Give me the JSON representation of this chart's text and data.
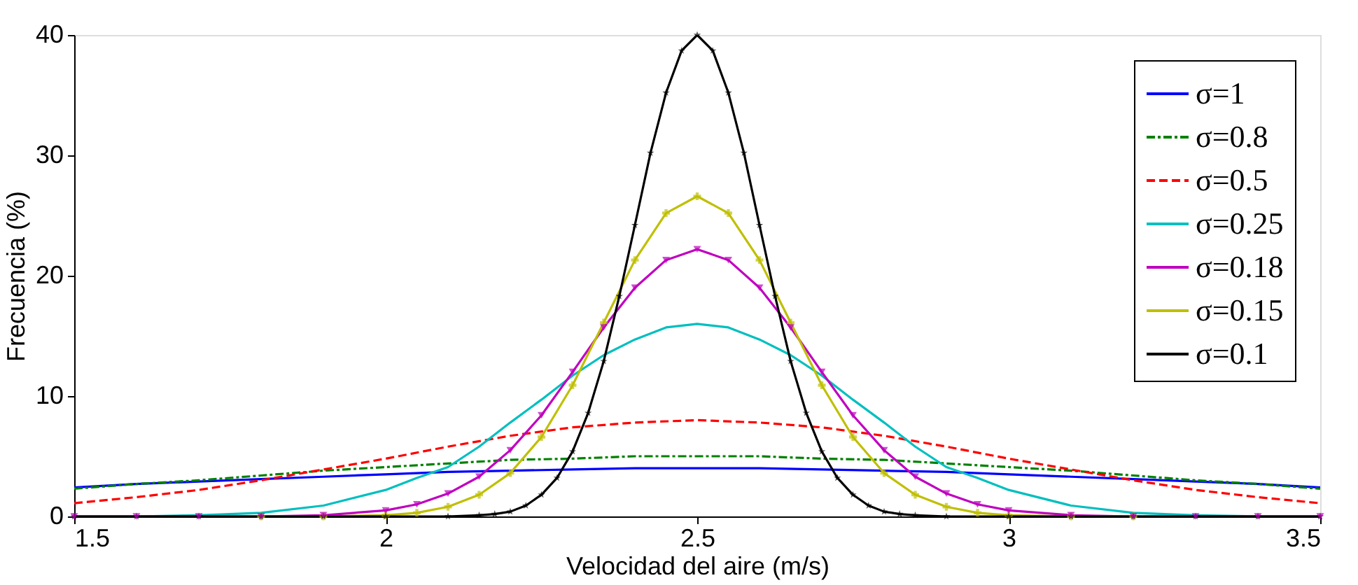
{
  "chart_data": {
    "type": "line",
    "xlabel": "Velocidad del aire  (m/s)",
    "ylabel": "Frecuencia (%)",
    "xlim": [
      1.5,
      3.5
    ],
    "xticks": [
      1.5,
      2,
      2.5,
      3,
      3.5
    ],
    "ylim": [
      0,
      40
    ],
    "yticks": [
      0,
      10,
      20,
      30,
      40
    ],
    "grid": false,
    "legend": "top right",
    "series": [
      {
        "name": "σ=1",
        "color": "#0000ff",
        "line_style": "solid",
        "marker": "none",
        "x": [
          1.5,
          1.6,
          1.7,
          1.8,
          1.9,
          2.0,
          2.1,
          2.2,
          2.3,
          2.4,
          2.5,
          2.6,
          2.7,
          2.8,
          2.9,
          3.0,
          3.1,
          3.2,
          3.3,
          3.4,
          3.5
        ],
        "values": [
          2.4,
          2.7,
          2.9,
          3.1,
          3.3,
          3.5,
          3.7,
          3.8,
          3.9,
          4.0,
          4.0,
          4.0,
          3.9,
          3.8,
          3.7,
          3.5,
          3.3,
          3.1,
          2.9,
          2.7,
          2.4
        ]
      },
      {
        "name": "σ=0.8",
        "color": "#008000",
        "line_style": "dashdot",
        "marker": "none",
        "x": [
          1.5,
          1.6,
          1.7,
          1.8,
          1.9,
          2.0,
          2.1,
          2.2,
          2.3,
          2.4,
          2.5,
          2.6,
          2.7,
          2.8,
          2.9,
          3.0,
          3.1,
          3.2,
          3.3,
          3.4,
          3.5
        ],
        "values": [
          2.3,
          2.7,
          3.0,
          3.4,
          3.8,
          4.1,
          4.4,
          4.7,
          4.8,
          5.0,
          5.0,
          5.0,
          4.8,
          4.7,
          4.4,
          4.1,
          3.8,
          3.4,
          3.0,
          2.7,
          2.3
        ]
      },
      {
        "name": "σ=0.5",
        "color": "#ff0000",
        "line_style": "dashed",
        "marker": "none",
        "x": [
          1.5,
          1.6,
          1.7,
          1.8,
          1.9,
          2.0,
          2.1,
          2.2,
          2.3,
          2.4,
          2.5,
          2.6,
          2.7,
          2.8,
          2.9,
          3.0,
          3.1,
          3.2,
          3.3,
          3.4,
          3.5
        ],
        "values": [
          1.1,
          1.6,
          2.2,
          3.0,
          3.9,
          4.8,
          5.8,
          6.7,
          7.4,
          7.8,
          8.0,
          7.8,
          7.4,
          6.7,
          5.8,
          4.8,
          3.9,
          3.0,
          2.2,
          1.6,
          1.1
        ]
      },
      {
        "name": "σ=0.25",
        "color": "#00bfbf",
        "line_style": "solid",
        "marker": "none",
        "x": [
          1.5,
          1.6,
          1.7,
          1.8,
          1.9,
          2.0,
          2.05,
          2.1,
          2.15,
          2.2,
          2.25,
          2.3,
          2.35,
          2.4,
          2.45,
          2.5,
          2.55,
          2.6,
          2.65,
          2.7,
          2.75,
          2.8,
          2.85,
          2.9,
          2.95,
          3.0,
          3.1,
          3.2,
          3.3,
          3.4,
          3.5
        ],
        "values": [
          0.0,
          0.0,
          0.1,
          0.3,
          0.9,
          2.2,
          3.2,
          4.1,
          5.8,
          7.8,
          9.7,
          11.7,
          13.4,
          14.7,
          15.7,
          16.0,
          15.7,
          14.7,
          13.4,
          11.7,
          9.7,
          7.8,
          5.8,
          4.1,
          3.2,
          2.2,
          0.9,
          0.3,
          0.1,
          0.0,
          0.0
        ]
      },
      {
        "name": "σ=0.18",
        "color": "#bf00bf",
        "line_style": "solid",
        "marker": "triangle",
        "x": [
          1.5,
          1.6,
          1.7,
          1.8,
          1.9,
          2.0,
          2.05,
          2.1,
          2.15,
          2.2,
          2.25,
          2.3,
          2.35,
          2.4,
          2.45,
          2.5,
          2.55,
          2.6,
          2.65,
          2.7,
          2.75,
          2.8,
          2.85,
          2.9,
          2.95,
          3.0,
          3.1,
          3.2,
          3.3,
          3.4,
          3.5
        ],
        "values": [
          0.0,
          0.0,
          0.0,
          0.0,
          0.1,
          0.5,
          1.0,
          1.9,
          3.3,
          5.5,
          8.4,
          12.0,
          15.7,
          19.0,
          21.3,
          22.2,
          21.3,
          19.0,
          15.7,
          12.0,
          8.4,
          5.5,
          3.3,
          1.9,
          1.0,
          0.5,
          0.1,
          0.0,
          0.0,
          0.0,
          0.0
        ]
      },
      {
        "name": "σ=0.15",
        "color": "#bfbf00",
        "line_style": "solid",
        "marker": "cross",
        "x": [
          1.8,
          1.9,
          2.0,
          2.05,
          2.1,
          2.15,
          2.2,
          2.25,
          2.3,
          2.35,
          2.4,
          2.45,
          2.5,
          2.55,
          2.6,
          2.65,
          2.7,
          2.75,
          2.8,
          2.85,
          2.9,
          2.95,
          3.0,
          3.1,
          3.2
        ],
        "values": [
          0.0,
          0.0,
          0.1,
          0.3,
          0.8,
          1.8,
          3.6,
          6.6,
          10.9,
          16.1,
          21.3,
          25.2,
          26.6,
          25.2,
          21.3,
          16.1,
          10.9,
          6.6,
          3.6,
          1.8,
          0.8,
          0.3,
          0.1,
          0.0,
          0.0
        ]
      },
      {
        "name": "σ=0.1",
        "color": "#000000",
        "line_style": "solid",
        "marker": "star",
        "x": [
          1.5,
          1.6,
          1.7,
          1.8,
          1.9,
          2.0,
          2.1,
          2.15,
          2.175,
          2.2,
          2.225,
          2.25,
          2.275,
          2.3,
          2.325,
          2.35,
          2.375,
          2.4,
          2.425,
          2.45,
          2.475,
          2.5,
          2.525,
          2.55,
          2.575,
          2.6,
          2.625,
          2.65,
          2.675,
          2.7,
          2.725,
          2.75,
          2.775,
          2.8,
          2.825,
          2.85,
          2.9,
          3.0,
          3.1,
          3.2,
          3.3,
          3.4,
          3.5
        ],
        "values": [
          0,
          0,
          0,
          0,
          0,
          0,
          0,
          0.1,
          0.2,
          0.4,
          0.9,
          1.8,
          3.2,
          5.4,
          8.6,
          12.9,
          18.3,
          24.2,
          30.2,
          35.2,
          38.7,
          40.0,
          38.7,
          35.2,
          30.2,
          24.2,
          18.3,
          12.9,
          8.6,
          5.4,
          3.2,
          1.8,
          0.9,
          0.4,
          0.2,
          0.1,
          0,
          0,
          0,
          0,
          0,
          0,
          0
        ]
      }
    ]
  }
}
